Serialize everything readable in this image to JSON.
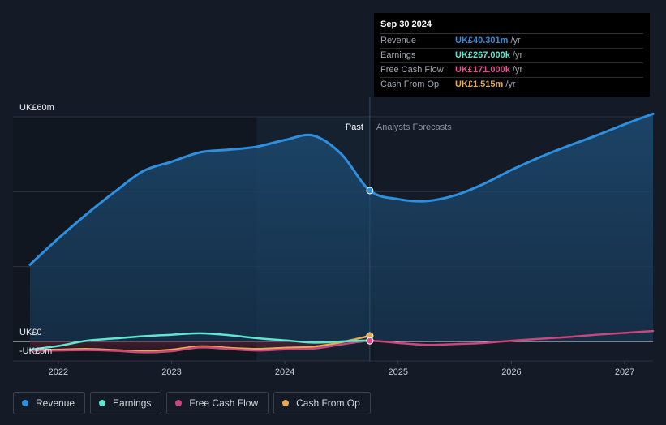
{
  "chart_data": {
    "type": "line",
    "currency": "UK£",
    "y_labels": [
      "UK£60m",
      "UK£0",
      "-UK£5m"
    ],
    "y_ticks": [
      60,
      0,
      -5
    ],
    "ylim": [
      -5,
      60
    ],
    "xlim": [
      2021.6,
      2027.25
    ],
    "x_ticks": [
      2022,
      2023,
      2024,
      2025,
      2026,
      2027
    ],
    "x_tick_labels": [
      "2022",
      "2023",
      "2024",
      "2025",
      "2026",
      "2027"
    ],
    "gridlines": [
      60,
      40,
      20,
      0
    ],
    "past_label": "Past",
    "forecast_label": "Analysts Forecasts",
    "divider_x": 2024.75,
    "highlight_band": [
      2023.75,
      2024.75
    ],
    "series": [
      {
        "name": "Revenue",
        "color": "#2d8fe0",
        "fill": true,
        "x": [
          2021.75,
          2022.0,
          2022.25,
          2022.5,
          2022.75,
          2023.0,
          2023.25,
          2023.5,
          2023.75,
          2024.0,
          2024.25,
          2024.5,
          2024.75,
          2025.0,
          2025.25,
          2025.5,
          2025.75,
          2026.0,
          2026.25,
          2026.5,
          2026.75,
          2027.0,
          2027.25
        ],
        "y": [
          20.5,
          27.5,
          34.0,
          40.0,
          45.5,
          48.0,
          50.5,
          51.2,
          52.0,
          53.8,
          55.0,
          50.0,
          40.3,
          38.0,
          37.5,
          39.0,
          42.0,
          45.8,
          49.2,
          52.2,
          55.0,
          58.0,
          60.8
        ]
      },
      {
        "name": "Earnings",
        "color": "#5ee6d0",
        "x": [
          2021.75,
          2022.0,
          2022.25,
          2022.5,
          2022.75,
          2023.0,
          2023.25,
          2023.5,
          2023.75,
          2024.0,
          2024.25,
          2024.5,
          2024.75
        ],
        "y": [
          -2.2,
          -1.2,
          0.2,
          0.8,
          1.4,
          1.8,
          2.2,
          1.7,
          0.9,
          0.3,
          -0.3,
          0.0,
          0.267
        ]
      },
      {
        "name": "Free Cash Flow",
        "color": "#c8487e",
        "x": [
          2021.75,
          2022.0,
          2022.25,
          2022.5,
          2022.75,
          2023.0,
          2023.25,
          2023.5,
          2023.75,
          2024.0,
          2024.25,
          2024.5,
          2024.75,
          2025.0,
          2025.25,
          2025.5,
          2025.75,
          2026.0,
          2026.25,
          2026.5,
          2026.75,
          2027.0,
          2027.25
        ],
        "y": [
          -2.5,
          -2.4,
          -2.3,
          -2.5,
          -2.9,
          -2.6,
          -1.6,
          -2.0,
          -2.4,
          -2.1,
          -1.9,
          -0.8,
          0.171,
          -0.4,
          -0.9,
          -0.7,
          -0.4,
          0.2,
          0.7,
          1.2,
          1.8,
          2.3,
          2.8
        ]
      },
      {
        "name": "Cash From Op",
        "color": "#e8a951",
        "x": [
          2021.75,
          2022.0,
          2022.25,
          2022.5,
          2022.75,
          2023.0,
          2023.25,
          2023.5,
          2023.75,
          2024.0,
          2024.25,
          2024.5,
          2024.75
        ],
        "y": [
          -2.3,
          -2.2,
          -2.0,
          -2.3,
          -2.6,
          -2.2,
          -1.3,
          -1.7,
          -2.0,
          -1.7,
          -1.4,
          -0.2,
          1.515
        ]
      }
    ],
    "legend_position": "bottom-left"
  },
  "tooltip": {
    "date": "Sep 30 2024",
    "rows": [
      {
        "label": "Revenue",
        "value": "UK£40.301m",
        "unit": "/yr",
        "color": "#2d8fe0"
      },
      {
        "label": "Earnings",
        "value": "UK£267.000k",
        "unit": "/yr",
        "color": "#5ee6d0"
      },
      {
        "label": "Free Cash Flow",
        "value": "UK£171.000k",
        "unit": "/yr",
        "color": "#e0508f"
      },
      {
        "label": "Cash From Op",
        "value": "UK£1.515m",
        "unit": "/yr",
        "color": "#e8a951"
      }
    ]
  },
  "legend": [
    {
      "label": "Revenue",
      "color": "#2d8fe0"
    },
    {
      "label": "Earnings",
      "color": "#5ee6d0"
    },
    {
      "label": "Free Cash Flow",
      "color": "#c8487e"
    },
    {
      "label": "Cash From Op",
      "color": "#e8a951"
    }
  ]
}
